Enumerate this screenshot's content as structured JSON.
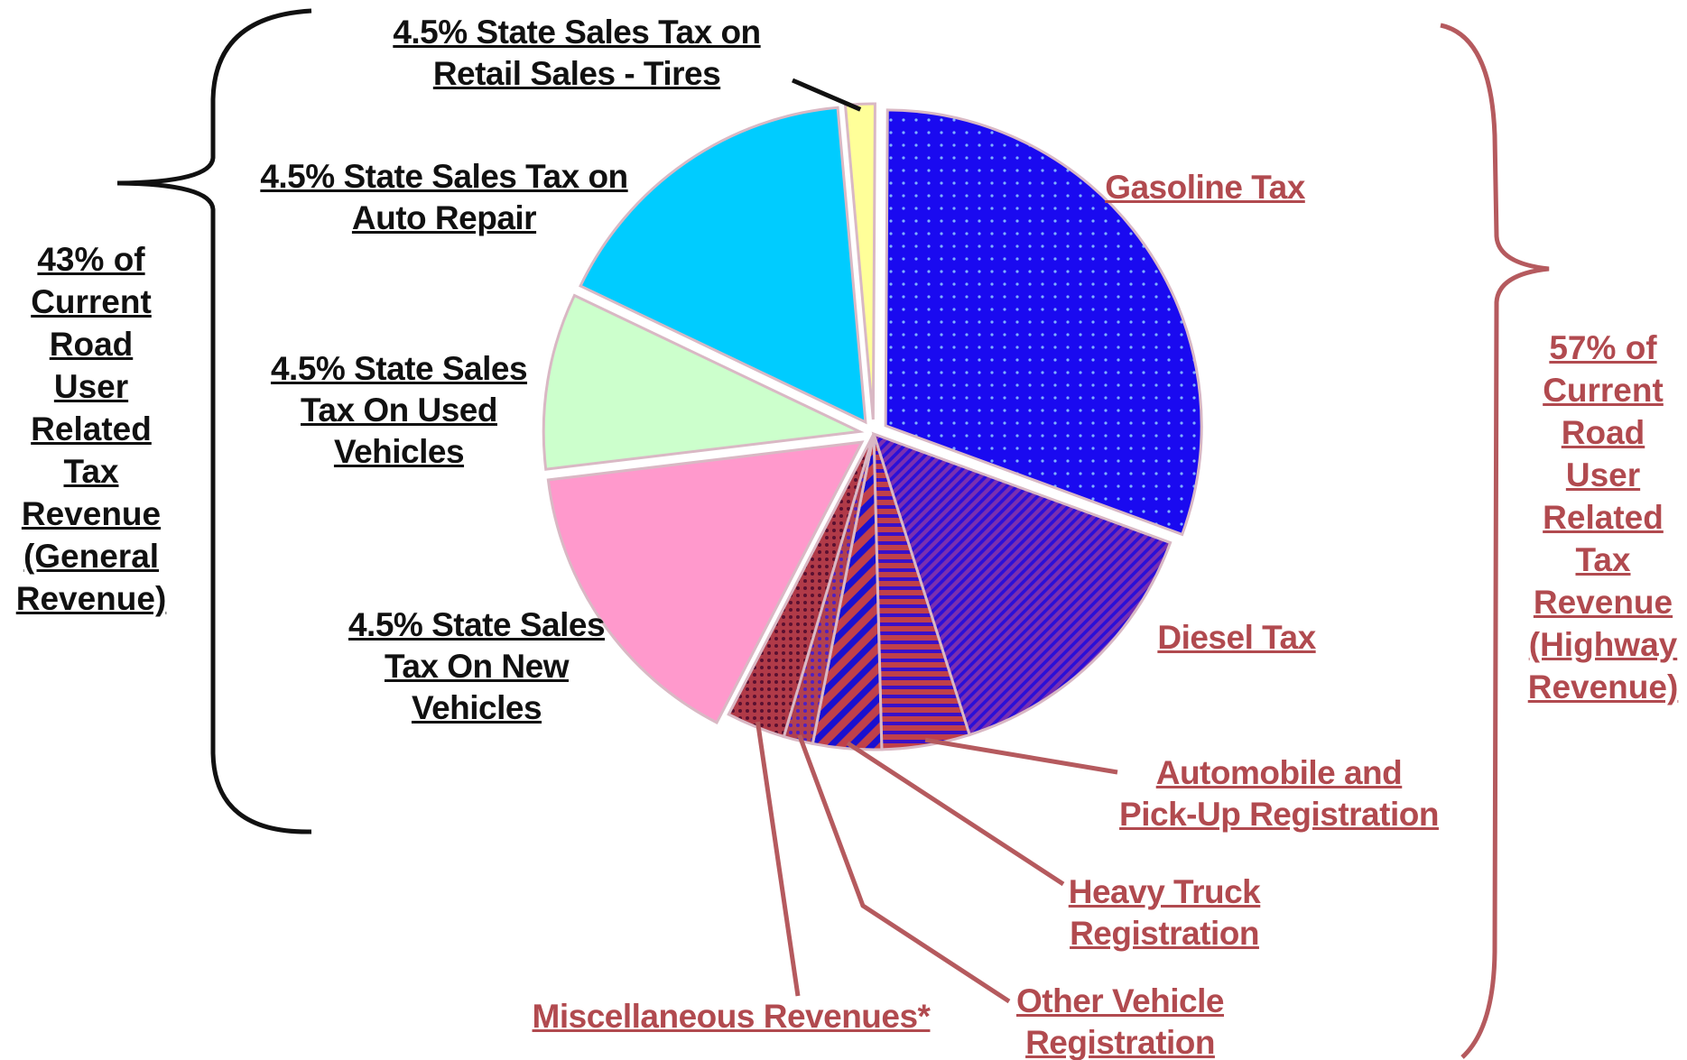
{
  "colors": {
    "general_text": "#111111",
    "highway_text": "#b14a4f",
    "highway_bracket": "#b55a5e"
  },
  "left_bracket_label": {
    "lines": [
      "43% of",
      "Current",
      "Road",
      "User",
      "Related",
      "Tax",
      "Revenue",
      "(General",
      "Revenue)"
    ]
  },
  "right_bracket_label": {
    "lines": [
      "57% of",
      "Current",
      "Road",
      "User",
      "Related",
      "Tax",
      "Revenue",
      "(Highway",
      "Revenue)"
    ]
  },
  "chart_data": {
    "type": "pie",
    "title": "",
    "groups": [
      {
        "name": "43% of Current Road User Related Tax Revenue (General Revenue)",
        "share_percent": 43
      },
      {
        "name": "57% of Current Road User Related Tax Revenue (Highway Revenue)",
        "share_percent": 57
      }
    ],
    "slices": [
      {
        "label": "Gasoline Tax",
        "lines": [
          "Gasoline Tax"
        ],
        "value": 30.5,
        "group": "Highway",
        "fill": "#1a0af0",
        "pattern": "dots",
        "pattern_color": "#7fb0ff",
        "exploded": true
      },
      {
        "label": "Diesel Tax",
        "lines": [
          "Diesel Tax"
        ],
        "value": 14.5,
        "group": "Highway",
        "fill": "#7a2fb0",
        "pattern": "diag-fine",
        "pattern_color": "#2a10d8",
        "exploded": false
      },
      {
        "label": "Automobile and Pick-Up Registration",
        "lines": [
          "Automobile and",
          "Pick-Up Registration"
        ],
        "value": 4.5,
        "group": "Highway",
        "fill": "#c0404a",
        "pattern": "hstripes",
        "pattern_color": "#3a10c8",
        "exploded": false
      },
      {
        "label": "Heavy Truck Registration",
        "lines": [
          "Heavy Truck",
          "Registration"
        ],
        "value": 3.5,
        "group": "Highway",
        "fill": "#c0404a",
        "pattern": "diag-wide",
        "pattern_color": "#1a10d0",
        "exploded": false
      },
      {
        "label": "Other Vehicle Registration",
        "lines": [
          "Other Vehicle",
          "Registration"
        ],
        "value": 1.5,
        "group": "Highway",
        "fill": "#b04050",
        "pattern": "dots-dense",
        "pattern_color": "#5020c0",
        "exploded": false
      },
      {
        "label": "Miscellaneous Revenues*",
        "lines": [
          "Miscellaneous Revenues*"
        ],
        "value": 3.0,
        "group": "Highway",
        "fill": "#b03a48",
        "pattern": "dots-dark",
        "pattern_color": "#5a1030",
        "exploded": false
      },
      {
        "label": "4.5% State Sales Tax On New Vehicles",
        "lines": [
          "4.5% State Sales",
          "Tax On New",
          "Vehicles"
        ],
        "value": 15.5,
        "group": "General",
        "fill": "#ff99cc",
        "pattern": "none",
        "pattern_color": "",
        "exploded": true
      },
      {
        "label": "4.5% State Sales Tax On Used Vehicles",
        "lines": [
          "4.5% State Sales",
          "Tax On Used",
          "Vehicles"
        ],
        "value": 9.0,
        "group": "General",
        "fill": "#ccffcc",
        "pattern": "none",
        "pattern_color": "",
        "exploded": true
      },
      {
        "label": "4.5% State Sales Tax on Auto Repair",
        "lines": [
          "4.5% State Sales Tax on",
          "Auto Repair"
        ],
        "value": 16.5,
        "group": "General",
        "fill": "#00ccff",
        "pattern": "none",
        "pattern_color": "",
        "exploded": true
      },
      {
        "label": "4.5% State Sales Tax on Retail Sales - Tires",
        "lines": [
          "4.5% State Sales Tax on",
          "Retail Sales - Tires"
        ],
        "value": 1.5,
        "group": "General",
        "fill": "#ffff99",
        "pattern": "none",
        "pattern_color": "",
        "exploded": true
      }
    ],
    "legend": "none"
  }
}
